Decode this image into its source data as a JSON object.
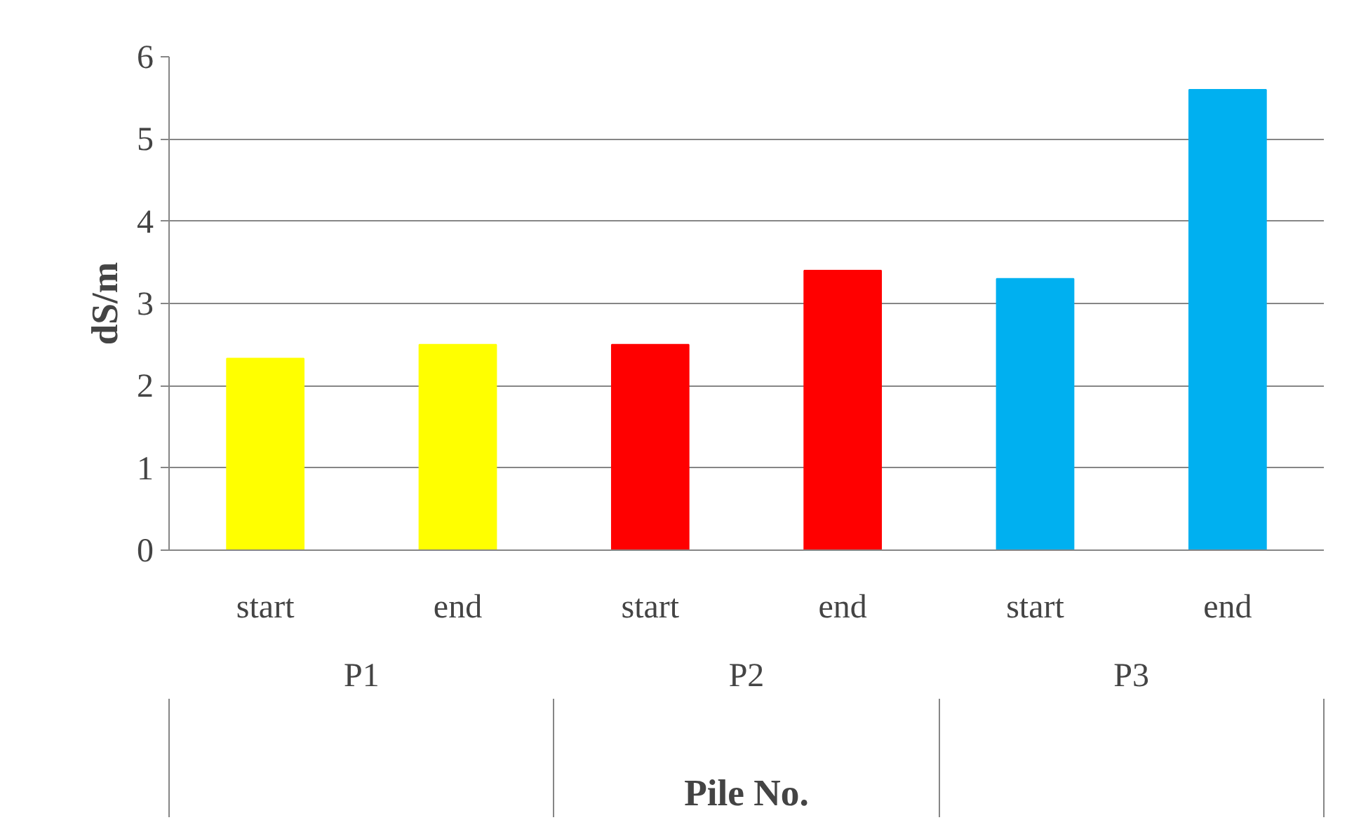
{
  "chart_data": {
    "type": "bar",
    "categories": [
      "start",
      "end",
      "start",
      "end",
      "start",
      "end"
    ],
    "values": [
      2.33,
      2.5,
      2.5,
      3.4,
      3.3,
      5.6
    ],
    "colors": [
      "#ffff00",
      "#ffff00",
      "#ff0000",
      "#ff0000",
      "#00b0f0",
      "#00b0f0"
    ],
    "annotations": [
      "P1",
      "P2",
      "P3"
    ],
    "ylabel": "dS/m",
    "xlabel": "Pile No.",
    "ylim": [
      0,
      6
    ],
    "yticks": [
      0,
      1,
      2,
      3,
      4,
      5,
      6
    ],
    "grid": "y"
  }
}
